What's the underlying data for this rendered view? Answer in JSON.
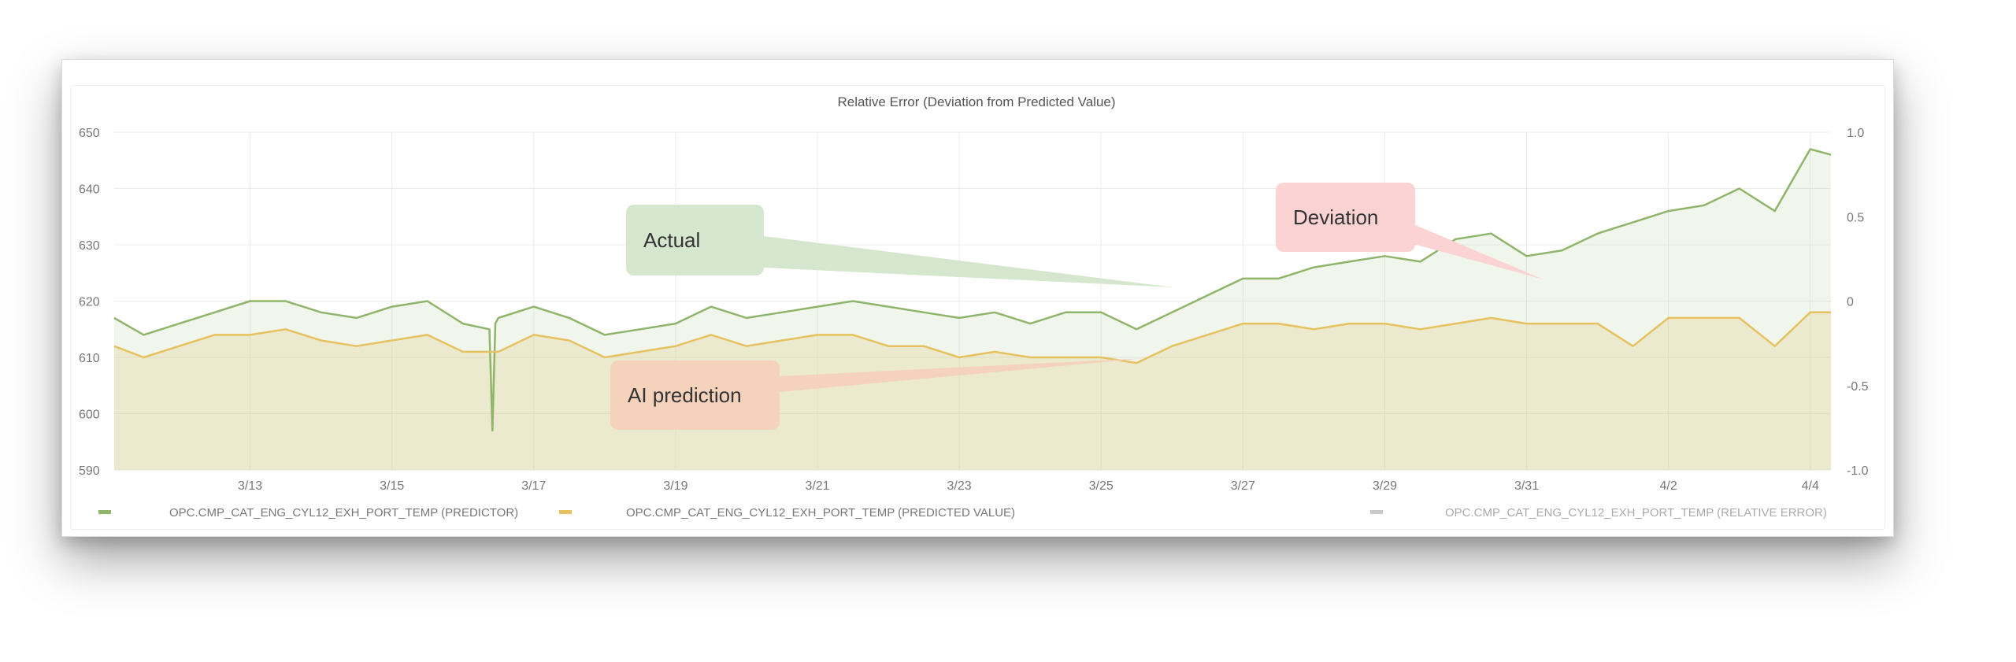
{
  "chart_data": {
    "type": "area",
    "title": "Relative Error (Deviation from Predicted Value)",
    "xlim": [
      "3/11 02:00",
      "4/4 07:00"
    ],
    "x_ticks": [
      "3/13",
      "3/15",
      "3/17",
      "3/19",
      "3/21",
      "3/23",
      "3/25",
      "3/27",
      "3/29",
      "3/31",
      "4/2",
      "4/4"
    ],
    "ylim_left": [
      590,
      650
    ],
    "y_ticks_left": [
      "590",
      "600",
      "610",
      "620",
      "630",
      "640",
      "650"
    ],
    "ylim_right": [
      -1.0,
      1.0
    ],
    "y_ticks_right": [
      "-1.0",
      "-0.5",
      "0",
      "0.5",
      "1.0"
    ],
    "grid": true,
    "legend_position": "bottom",
    "series": [
      {
        "name": "OPC.CMP_CAT_ENG_CYL12_EXH_PORT_TEMP (PREDICTOR)",
        "color": "#8fb56b",
        "axis": "left",
        "x": [
          "3/11 00:00",
          "3/11 12:00",
          "3/12 00:00",
          "3/12 12:00",
          "3/13 00:00",
          "3/13 12:00",
          "3/14 00:00",
          "3/14 12:00",
          "3/15 00:00",
          "3/15 12:00",
          "3/16 00:00",
          "3/16 09:00",
          "3/16 10:00",
          "3/16 11:00",
          "3/16 12:00",
          "3/17 00:00",
          "3/17 12:00",
          "3/18 00:00",
          "3/18 12:00",
          "3/19 00:00",
          "3/19 12:00",
          "3/20 00:00",
          "3/20 12:00",
          "3/21 00:00",
          "3/21 12:00",
          "3/22 00:00",
          "3/22 12:00",
          "3/23 00:00",
          "3/23 12:00",
          "3/24 00:00",
          "3/24 12:00",
          "3/25 00:00",
          "3/25 12:00",
          "3/26 00:00",
          "3/26 12:00",
          "3/27 00:00",
          "3/27 12:00",
          "3/28 00:00",
          "3/28 12:00",
          "3/29 00:00",
          "3/29 12:00",
          "3/30 00:00",
          "3/30 12:00",
          "3/31 00:00",
          "3/31 12:00",
          "4/1 00:00",
          "4/1 12:00",
          "4/2 00:00",
          "4/2 12:00",
          "4/3 00:00",
          "4/3 12:00",
          "4/4 00:00",
          "4/4 07:00"
        ],
        "values": [
          617,
          614,
          616,
          618,
          620,
          620,
          618,
          617,
          619,
          620,
          616,
          615,
          597,
          616,
          617,
          619,
          617,
          614,
          615,
          616,
          619,
          617,
          618,
          619,
          620,
          619,
          618,
          617,
          618,
          616,
          618,
          618,
          615,
          618,
          621,
          624,
          624,
          626,
          627,
          628,
          627,
          631,
          632,
          628,
          629,
          632,
          634,
          636,
          637,
          640,
          636,
          647,
          646
        ]
      },
      {
        "name": "OPC.CMP_CAT_ENG_CYL12_EXH_PORT_TEMP (PREDICTED VALUE)",
        "color": "#e6c15f",
        "axis": "left",
        "x": [
          "3/11 00:00",
          "3/11 12:00",
          "3/12 00:00",
          "3/12 12:00",
          "3/13 00:00",
          "3/13 12:00",
          "3/14 00:00",
          "3/14 12:00",
          "3/15 00:00",
          "3/15 12:00",
          "3/16 00:00",
          "3/16 12:00",
          "3/17 00:00",
          "3/17 12:00",
          "3/18 00:00",
          "3/18 12:00",
          "3/19 00:00",
          "3/19 12:00",
          "3/20 00:00",
          "3/20 12:00",
          "3/21 00:00",
          "3/21 12:00",
          "3/22 00:00",
          "3/22 12:00",
          "3/23 00:00",
          "3/23 12:00",
          "3/24 00:00",
          "3/24 12:00",
          "3/25 00:00",
          "3/25 12:00",
          "3/26 00:00",
          "3/26 12:00",
          "3/27 00:00",
          "3/27 12:00",
          "3/28 00:00",
          "3/28 12:00",
          "3/29 00:00",
          "3/29 12:00",
          "3/30 00:00",
          "3/30 12:00",
          "3/31 00:00",
          "3/31 12:00",
          "4/1 00:00",
          "4/1 12:00",
          "4/2 00:00",
          "4/2 12:00",
          "4/3 00:00",
          "4/3 12:00",
          "4/4 00:00",
          "4/4 07:00"
        ],
        "values": [
          612,
          610,
          612,
          614,
          614,
          615,
          613,
          612,
          613,
          614,
          611,
          611,
          614,
          613,
          610,
          611,
          612,
          614,
          612,
          613,
          614,
          614,
          612,
          612,
          610,
          611,
          610,
          610,
          610,
          609,
          612,
          614,
          616,
          616,
          615,
          616,
          616,
          615,
          616,
          617,
          616,
          616,
          616,
          612,
          617,
          617,
          617,
          612,
          618,
          618
        ]
      },
      {
        "name": "OPC.CMP_CAT_ENG_CYL12_EXH_PORT_TEMP (RELATIVE ERROR)",
        "color": "#c8c8c8",
        "axis": "right"
      }
    ],
    "annotations": [
      {
        "label": "Actual",
        "color": "#d5e8cf"
      },
      {
        "label": "Deviation",
        "color": "#fbd3d3"
      },
      {
        "label": "AI prediction",
        "color": "#f4d2bc"
      }
    ]
  }
}
